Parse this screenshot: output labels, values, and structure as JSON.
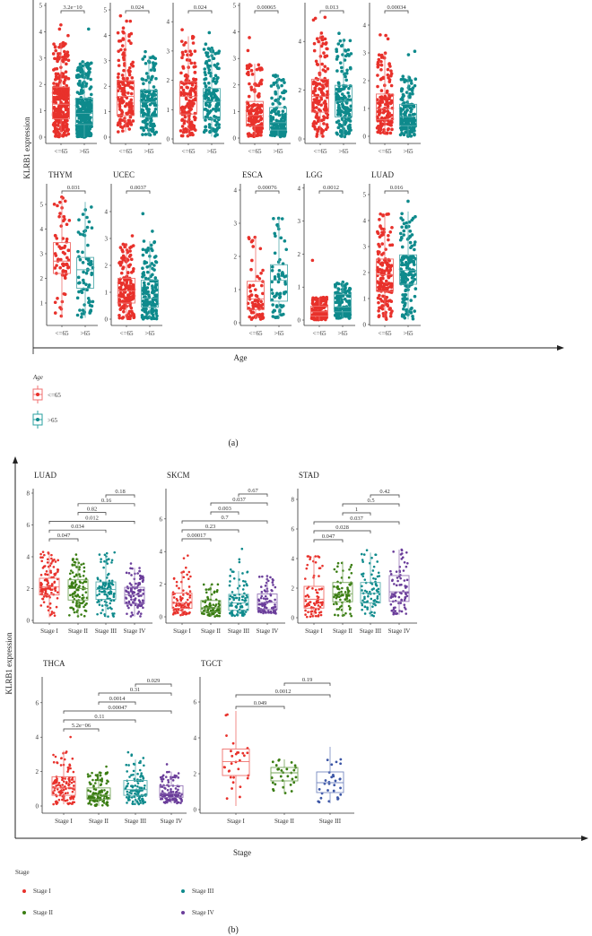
{
  "figure_a": {
    "ylabel": "KLRB1 expression",
    "xlabel": "Age",
    "caption": "(a)",
    "legend": {
      "title": "Age",
      "items": [
        {
          "label": "<=65",
          "color": "#e8312b"
        },
        {
          "label": ">65",
          "color": "#0e8a8c"
        }
      ]
    }
  },
  "figure_b": {
    "ylabel": "KLRB1 expression",
    "xlabel": "Stage",
    "caption": "(b)",
    "legend": {
      "title": "Stage",
      "items": [
        {
          "label": "Stage I",
          "color": "#e8312b"
        },
        {
          "label": "Stage II",
          "color": "#3a7d12"
        },
        {
          "label": "Stage III",
          "color": "#0e8a8c"
        },
        {
          "label": "Stage IV",
          "color": "#6a3d9a"
        }
      ]
    }
  },
  "chart_data": [
    {
      "figure": "a",
      "type": "box",
      "title": "",
      "categories": [
        "<=65",
        ">65"
      ],
      "yticks": [
        0,
        1,
        2,
        3,
        4,
        5
      ],
      "colors": [
        "#e8312b",
        "#0e8a8c"
      ],
      "groups": [
        {
          "q1": 0.7,
          "median": 1.25,
          "q3": 1.9,
          "lower": 0,
          "upper": 3.6,
          "max": 4.55
        },
        {
          "q1": 0.48,
          "median": 0.9,
          "q3": 1.48,
          "lower": 0,
          "upper": 2.9,
          "max": 4.55
        }
      ],
      "comparisons": [
        {
          "pair": [
            0,
            1
          ],
          "p": "3.2e−10"
        }
      ]
    },
    {
      "figure": "a",
      "type": "box",
      "title": "",
      "categories": [
        "<=65",
        ">65"
      ],
      "yticks": [
        0,
        1,
        2,
        3,
        4,
        5
      ],
      "colors": [
        "#e8312b",
        "#0e8a8c"
      ],
      "groups": [
        {
          "q1": 0.85,
          "median": 1.6,
          "q3": 2.22,
          "lower": 0.2,
          "upper": 4.1,
          "max": 4.8
        },
        {
          "q1": 0.8,
          "median": 1.38,
          "q3": 1.85,
          "lower": 0.05,
          "upper": 3.2,
          "max": 4.2
        }
      ],
      "comparisons": [
        {
          "pair": [
            0,
            1
          ],
          "p": "0.024"
        }
      ]
    },
    {
      "figure": "a",
      "type": "box",
      "title": "",
      "categories": [
        "<=65",
        ">65"
      ],
      "yticks": [
        0,
        1,
        2,
        3,
        4
      ],
      "colors": [
        "#e8312b",
        "#0e8a8c"
      ],
      "groups": [
        {
          "q1": 0.85,
          "median": 1.45,
          "q3": 1.95,
          "lower": 0.1,
          "upper": 3.5,
          "max": 4.25
        },
        {
          "q1": 0.7,
          "median": 1.28,
          "q3": 1.72,
          "lower": 0.08,
          "upper": 3.1,
          "max": 3.85
        }
      ],
      "comparisons": [
        {
          "pair": [
            0,
            1
          ],
          "p": "0.024"
        }
      ]
    },
    {
      "figure": "a",
      "type": "box",
      "title": "",
      "categories": [
        "<=65",
        ">65"
      ],
      "yticks": [
        0,
        1,
        2,
        3,
        4,
        5
      ],
      "colors": [
        "#e8312b",
        "#0e8a8c"
      ],
      "groups": [
        {
          "q1": 0.45,
          "median": 0.85,
          "q3": 1.38,
          "lower": 0.05,
          "upper": 2.8,
          "max": 3.8
        },
        {
          "q1": 0.3,
          "median": 0.58,
          "q3": 1.15,
          "lower": 0.05,
          "upper": 2.4,
          "max": 4.55
        }
      ],
      "comparisons": [
        {
          "pair": [
            0,
            1
          ],
          "p": "0.00065"
        }
      ]
    },
    {
      "figure": "a",
      "type": "box",
      "title": "",
      "categories": [
        "<=65",
        ">65"
      ],
      "yticks": [
        0,
        2,
        4
      ],
      "colors": [
        "#e8312b",
        "#0e8a8c"
      ],
      "groups": [
        {
          "q1": 1.1,
          "median": 1.75,
          "q3": 2.45,
          "lower": 0.1,
          "upper": 4.3,
          "max": 5.1
        },
        {
          "q1": 0.9,
          "median": 1.55,
          "q3": 2.2,
          "lower": 0.05,
          "upper": 4.1,
          "max": 4.4
        }
      ],
      "comparisons": [
        {
          "pair": [
            0,
            1
          ],
          "p": "0.013"
        }
      ]
    },
    {
      "figure": "a",
      "type": "box",
      "title": "",
      "categories": [
        "<=65",
        ">65"
      ],
      "yticks": [
        0,
        1,
        2,
        3,
        4
      ],
      "colors": [
        "#e8312b",
        "#0e8a8c"
      ],
      "groups": [
        {
          "q1": 0.6,
          "median": 1.0,
          "q3": 1.52,
          "lower": 0.1,
          "upper": 3.0,
          "max": 4.35
        },
        {
          "q1": 0.38,
          "median": 0.7,
          "q3": 1.15,
          "lower": 0,
          "upper": 2.2,
          "max": 3.1
        }
      ],
      "comparisons": [
        {
          "pair": [
            0,
            1
          ],
          "p": "0.00034"
        }
      ]
    },
    {
      "figure": "a",
      "type": "box",
      "title": "THYM",
      "categories": [
        "<=65",
        ">65"
      ],
      "yticks": [
        1,
        2,
        3,
        4,
        5
      ],
      "colors": [
        "#e8312b",
        "#0e8a8c"
      ],
      "groups": [
        {
          "q1": 2.2,
          "median": 2.7,
          "q3": 3.45,
          "lower": 0.4,
          "upper": 5.3,
          "max": 5.3
        },
        {
          "q1": 1.6,
          "median": 2.35,
          "q3": 2.85,
          "lower": 0.4,
          "upper": 5.1,
          "max": 5.1
        }
      ],
      "comparisons": [
        {
          "pair": [
            0,
            1
          ],
          "p": "0.031"
        }
      ]
    },
    {
      "figure": "a",
      "type": "box",
      "title": "UCEC",
      "categories": [
        "<=65",
        ">65"
      ],
      "yticks": [
        0,
        1,
        2,
        3,
        4
      ],
      "colors": [
        "#e8312b",
        "#0e8a8c"
      ],
      "groups": [
        {
          "q1": 0.6,
          "median": 1.05,
          "q3": 1.52,
          "lower": 0,
          "upper": 2.8,
          "max": 4.45
        },
        {
          "q1": 0.45,
          "median": 0.78,
          "q3": 1.45,
          "lower": 0,
          "upper": 2.9,
          "max": 4.35
        }
      ],
      "comparisons": [
        {
          "pair": [
            0,
            1
          ],
          "p": "0.0037"
        }
      ]
    },
    {
      "figure": "a",
      "type": "box",
      "title": "ESCA",
      "categories": [
        "<=65",
        ">65"
      ],
      "yticks": [
        0,
        1,
        2,
        3,
        4
      ],
      "colors": [
        "#e8312b",
        "#0e8a8c"
      ],
      "groups": [
        {
          "q1": 0.4,
          "median": 0.72,
          "q3": 1.25,
          "lower": 0.1,
          "upper": 2.6,
          "max": 3.78
        },
        {
          "q1": 0.65,
          "median": 1.28,
          "q3": 1.75,
          "lower": 0.15,
          "upper": 3.15,
          "max": 3.15
        }
      ],
      "comparisons": [
        {
          "pair": [
            0,
            1
          ],
          "p": "0.00076"
        }
      ]
    },
    {
      "figure": "a",
      "type": "box",
      "title": "LGG",
      "categories": [
        "<=65",
        ">65"
      ],
      "yticks": [
        0,
        1,
        2,
        3,
        4
      ],
      "colors": [
        "#e8312b",
        "#0e8a8c"
      ],
      "groups": [
        {
          "q1": 0.12,
          "median": 0.25,
          "q3": 0.42,
          "lower": 0,
          "upper": 0.7,
          "max": 3.65
        },
        {
          "q1": 0.25,
          "median": 0.4,
          "q3": 0.78,
          "lower": 0.05,
          "upper": 1.15,
          "max": 1.15
        }
      ],
      "comparisons": [
        {
          "pair": [
            0,
            1
          ],
          "p": "0.0012"
        }
      ]
    },
    {
      "figure": "a",
      "type": "box",
      "title": "LUAD",
      "categories": [
        "<=65",
        ">65"
      ],
      "yticks": [
        0,
        1,
        2,
        3,
        4,
        5
      ],
      "colors": [
        "#e8312b",
        "#0e8a8c"
      ],
      "groups": [
        {
          "q1": 1.28,
          "median": 1.92,
          "q3": 2.52,
          "lower": 0.2,
          "upper": 4.25,
          "max": 4.25
        },
        {
          "q1": 1.55,
          "median": 2.08,
          "q3": 2.68,
          "lower": 0.2,
          "upper": 4.35,
          "max": 4.9
        }
      ],
      "comparisons": [
        {
          "pair": [
            0,
            1
          ],
          "p": "0.016"
        }
      ]
    },
    {
      "figure": "b",
      "type": "box",
      "title": "LUAD",
      "categories": [
        "Stage I",
        "Stage II",
        "Stage III",
        "Stage IV"
      ],
      "yticks": [
        0,
        2,
        4,
        6,
        8
      ],
      "colors": [
        "#e8312b",
        "#3a7d12",
        "#0e8a8c",
        "#6a3d9a"
      ],
      "groups": [
        {
          "q1": 1.6,
          "median": 2.1,
          "q3": 2.65,
          "lower": 0.2,
          "upper": 4.3,
          "max": 4.3
        },
        {
          "q1": 1.28,
          "median": 2.0,
          "q3": 2.55,
          "lower": 0.25,
          "upper": 3.9,
          "max": 4.9
        },
        {
          "q1": 1.32,
          "median": 1.95,
          "q3": 2.42,
          "lower": 0.2,
          "upper": 4.05,
          "max": 4.3
        },
        {
          "q1": 1.05,
          "median": 1.6,
          "q3": 2.08,
          "lower": 0.25,
          "upper": 3.3,
          "max": 4.4
        }
      ],
      "comparisons": [
        {
          "pair": [
            0,
            1
          ],
          "p": "0.047"
        },
        {
          "pair": [
            0,
            2
          ],
          "p": "0.034"
        },
        {
          "pair": [
            0,
            3
          ],
          "p": "0.012"
        },
        {
          "pair": [
            1,
            2
          ],
          "p": "0.82"
        },
        {
          "pair": [
            1,
            3
          ],
          "p": "0.16"
        },
        {
          "pair": [
            2,
            3
          ],
          "p": "0.18"
        }
      ]
    },
    {
      "figure": "b",
      "type": "box",
      "title": "SKCM",
      "categories": [
        "Stage I",
        "Stage II",
        "Stage III",
        "Stage IV"
      ],
      "yticks": [
        0,
        2,
        4,
        6
      ],
      "colors": [
        "#e8312b",
        "#3a7d12",
        "#0e8a8c",
        "#6a3d9a"
      ],
      "groups": [
        {
          "q1": 0.52,
          "median": 0.85,
          "q3": 1.45,
          "lower": 0.1,
          "upper": 2.8,
          "max": 3.8
        },
        {
          "q1": 0.3,
          "median": 0.55,
          "q3": 1.0,
          "lower": 0.02,
          "upper": 2.0,
          "max": 3.05
        },
        {
          "q1": 0.4,
          "median": 0.85,
          "q3": 1.38,
          "lower": 0.05,
          "upper": 2.8,
          "max": 4.55
        },
        {
          "q1": 0.45,
          "median": 0.88,
          "q3": 1.4,
          "lower": 0.2,
          "upper": 2.5,
          "max": 2.5
        }
      ],
      "comparisons": [
        {
          "pair": [
            0,
            1
          ],
          "p": "0.00017"
        },
        {
          "pair": [
            0,
            2
          ],
          "p": "0.23"
        },
        {
          "pair": [
            0,
            3
          ],
          "p": "0.7"
        },
        {
          "pair": [
            1,
            2
          ],
          "p": "0.003"
        },
        {
          "pair": [
            1,
            3
          ],
          "p": "0.037"
        },
        {
          "pair": [
            2,
            3
          ],
          "p": "0.67"
        }
      ]
    },
    {
      "figure": "b",
      "type": "box",
      "title": "STAD",
      "categories": [
        "Stage I",
        "Stage II",
        "Stage III",
        "Stage IV"
      ],
      "yticks": [
        0,
        2,
        4,
        6,
        8
      ],
      "colors": [
        "#e8312b",
        "#3a7d12",
        "#0e8a8c",
        "#6a3d9a"
      ],
      "groups": [
        {
          "q1": 0.65,
          "median": 1.25,
          "q3": 2.12,
          "lower": 0.05,
          "upper": 4.15,
          "max": 4.15
        },
        {
          "q1": 1.08,
          "median": 1.62,
          "q3": 2.38,
          "lower": 0.1,
          "upper": 3.8,
          "max": 5.1
        },
        {
          "q1": 1.0,
          "median": 1.65,
          "q3": 2.38,
          "lower": 0.05,
          "upper": 4.4,
          "max": 4.6
        },
        {
          "q1": 1.1,
          "median": 1.75,
          "q3": 2.85,
          "lower": 0.2,
          "upper": 4.6,
          "max": 4.6
        }
      ],
      "comparisons": [
        {
          "pair": [
            0,
            1
          ],
          "p": "0.047"
        },
        {
          "pair": [
            0,
            2
          ],
          "p": "0.028"
        },
        {
          "pair": [
            0,
            3
          ],
          "p": "0.037"
        },
        {
          "pair": [
            1,
            2
          ],
          "p": "1"
        },
        {
          "pair": [
            1,
            3
          ],
          "p": "0.5"
        },
        {
          "pair": [
            2,
            3
          ],
          "p": "0.42"
        }
      ]
    },
    {
      "figure": "b",
      "type": "box",
      "title": "THCA",
      "categories": [
        "Stage I",
        "Stage II",
        "Stage III",
        "Stage IV"
      ],
      "yticks": [
        0,
        2,
        4,
        6
      ],
      "colors": [
        "#e8312b",
        "#3a7d12",
        "#0e8a8c",
        "#6a3d9a"
      ],
      "groups": [
        {
          "q1": 0.62,
          "median": 1.05,
          "q3": 1.7,
          "lower": 0.1,
          "upper": 3.2,
          "max": 4.4
        },
        {
          "q1": 0.4,
          "median": 0.62,
          "q3": 1.05,
          "lower": 0,
          "upper": 1.95,
          "max": 2.3
        },
        {
          "q1": 0.62,
          "median": 0.95,
          "q3": 1.48,
          "lower": 0.1,
          "upper": 2.7,
          "max": 3.15
        },
        {
          "q1": 0.5,
          "median": 0.72,
          "q3": 1.18,
          "lower": 0.15,
          "upper": 2.0,
          "max": 3.05
        }
      ],
      "comparisons": [
        {
          "pair": [
            0,
            1
          ],
          "p": "5.2e−06"
        },
        {
          "pair": [
            0,
            2
          ],
          "p": "0.11"
        },
        {
          "pair": [
            0,
            3
          ],
          "p": "0.00047"
        },
        {
          "pair": [
            1,
            2
          ],
          "p": "0.0014"
        },
        {
          "pair": [
            1,
            3
          ],
          "p": "0.31"
        },
        {
          "pair": [
            2,
            3
          ],
          "p": "0.029"
        }
      ]
    },
    {
      "figure": "b",
      "type": "box",
      "title": "TGCT",
      "categories": [
        "Stage I",
        "Stage II",
        "Stage III"
      ],
      "yticks": [
        0,
        2,
        4,
        6
      ],
      "colors": [
        "#e8312b",
        "#3a7d12",
        "#3c56a6"
      ],
      "groups": [
        {
          "q1": 1.9,
          "median": 2.68,
          "q3": 3.38,
          "lower": 0.2,
          "upper": 5.5,
          "max": 5.5
        },
        {
          "q1": 1.6,
          "median": 2.05,
          "q3": 2.35,
          "lower": 0.9,
          "upper": 2.8,
          "max": 3.6
        },
        {
          "q1": 0.95,
          "median": 1.5,
          "q3": 2.1,
          "lower": 0.35,
          "upper": 3.5,
          "max": 3.5
        }
      ],
      "comparisons": [
        {
          "pair": [
            0,
            1
          ],
          "p": "0.049"
        },
        {
          "pair": [
            0,
            2
          ],
          "p": "0.0012"
        },
        {
          "pair": [
            1,
            2
          ],
          "p": "0.19"
        }
      ]
    }
  ]
}
